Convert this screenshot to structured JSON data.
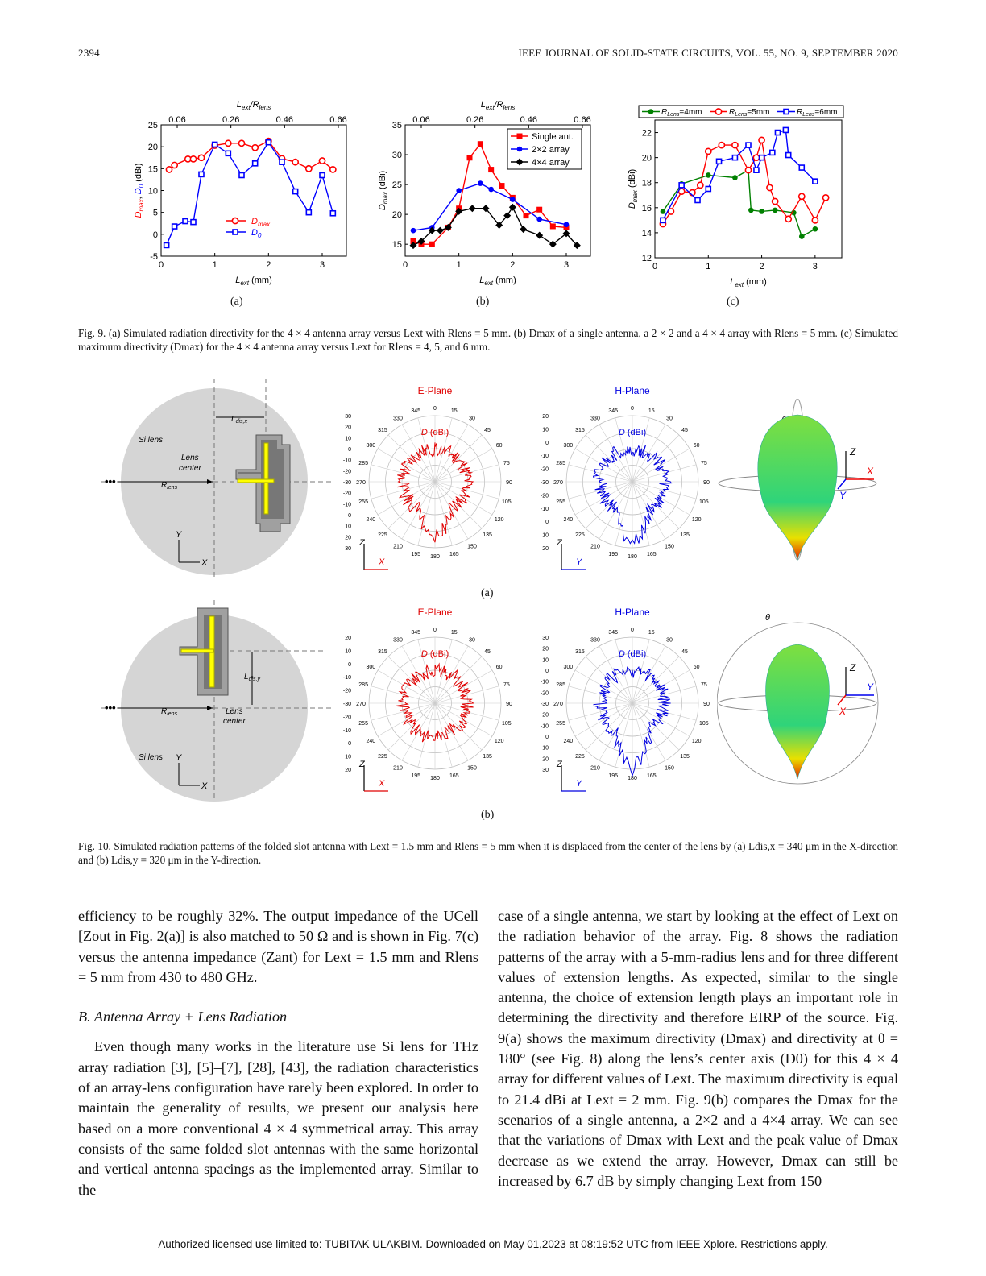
{
  "header": {
    "page_number": "2394",
    "journal": "IEEE JOURNAL OF SOLID-STATE CIRCUITS, VOL. 55, NO. 9, SEPTEMBER 2020"
  },
  "fig9": {
    "caption": "Fig. 9.   (a) Simulated radiation directivity for the 4 × 4 antenna array versus Lext with Rlens = 5 mm. (b) Dmax of a single antenna, a 2 × 2 and a 4 × 4 array with Rlens = 5 mm. (c) Simulated maximum directivity (Dmax) for the 4 × 4 antenna array versus Lext for Rlens = 4, 5, and 6 mm.",
    "label_a": "(a)",
    "label_b": "(b)",
    "label_c": "(c)"
  },
  "chart_data": [
    {
      "type": "line",
      "xlabel": "Lext (mm)",
      "ylabel": "Dmax, D0 (dBi)",
      "top_xlabel": "Lext/Rlens",
      "top_ticks": [
        "0.06",
        "0.26",
        "0.46",
        "0.66"
      ],
      "xlim": [
        0,
        3.45
      ],
      "ylim": [
        -5,
        25
      ],
      "xticks": [
        0,
        1,
        2,
        3
      ],
      "yticks": [
        -5,
        0,
        5,
        10,
        15,
        20,
        25
      ],
      "legend": "bottom-center",
      "series": [
        {
          "name": "Dmax",
          "color": "#ff0000",
          "marker": "circle",
          "x": [
            0.15,
            0.25,
            0.5,
            0.6,
            0.75,
            1.0,
            1.25,
            1.5,
            1.75,
            2.0,
            2.25,
            2.5,
            2.75,
            3.0,
            3.2
          ],
          "y": [
            14.8,
            15.8,
            17.2,
            17.2,
            17.5,
            20.3,
            20.8,
            20.8,
            19.8,
            21.3,
            17.3,
            16.5,
            15.0,
            16.8,
            14.8
          ]
        },
        {
          "name": "D0",
          "color": "#0000ff",
          "marker": "square",
          "x": [
            0.1,
            0.25,
            0.45,
            0.6,
            0.75,
            1.0,
            1.25,
            1.5,
            1.75,
            2.0,
            2.25,
            2.5,
            2.75,
            3.0,
            3.2
          ],
          "y": [
            -2.5,
            1.8,
            3.0,
            2.8,
            13.7,
            20.5,
            18.5,
            13.5,
            16.2,
            21.0,
            16.5,
            9.8,
            5.0,
            13.5,
            4.8
          ]
        }
      ]
    },
    {
      "type": "line",
      "xlabel": "Lext (mm)",
      "ylabel": "Dmax (dBi)",
      "top_xlabel": "Lext/Rlens",
      "top_ticks": [
        "0.06",
        "0.26",
        "0.46",
        "0.66"
      ],
      "xlim": [
        0,
        3.45
      ],
      "ylim": [
        13,
        35
      ],
      "xticks": [
        0,
        1,
        2,
        3
      ],
      "yticks": [
        15,
        20,
        25,
        30,
        35
      ],
      "legend": "top-right",
      "series": [
        {
          "name": "Single ant.",
          "color": "#ff0000",
          "marker": "square",
          "x": [
            0.15,
            0.3,
            0.5,
            0.8,
            1.0,
            1.2,
            1.4,
            1.6,
            1.8,
            2.0,
            2.25,
            2.5,
            2.75,
            3.0
          ],
          "y": [
            15.5,
            15.0,
            15.0,
            17.8,
            21.0,
            29.5,
            31.8,
            27.5,
            24.8,
            22.8,
            19.8,
            20.8,
            18.0,
            17.8
          ]
        },
        {
          "name": "2×2 array",
          "color": "#0000ff",
          "marker": "circle",
          "x": [
            0.15,
            0.5,
            1.0,
            1.4,
            1.6,
            2.0,
            2.5,
            3.0
          ],
          "y": [
            17.3,
            17.8,
            24.0,
            25.2,
            24.2,
            22.5,
            19.2,
            18.3
          ]
        },
        {
          "name": "4×4 array",
          "color": "#000000",
          "marker": "diamond",
          "x": [
            0.15,
            0.3,
            0.5,
            0.65,
            0.8,
            1.0,
            1.25,
            1.5,
            1.75,
            1.9,
            2.0,
            2.2,
            2.5,
            2.75,
            3.0,
            3.2
          ],
          "y": [
            14.8,
            15.5,
            17.3,
            17.3,
            17.8,
            20.5,
            21.0,
            21.0,
            18.2,
            19.8,
            21.2,
            17.5,
            16.5,
            15.0,
            16.8,
            14.8
          ]
        }
      ]
    },
    {
      "type": "line",
      "xlabel": "Lext (mm)",
      "ylabel": "Dmax (dBi)",
      "xlim": [
        0,
        3.5
      ],
      "ylim": [
        12,
        23
      ],
      "xticks": [
        0,
        1,
        2,
        3
      ],
      "yticks": [
        12,
        14,
        16,
        18,
        20,
        22
      ],
      "legend": "top",
      "series": [
        {
          "name": "RLens=4mm",
          "color": "#008000",
          "marker": "filled-circle",
          "x": [
            0.15,
            0.5,
            1.0,
            1.5,
            1.75,
            1.8,
            2.0,
            2.25,
            2.6,
            2.75,
            3.0
          ],
          "y": [
            15.7,
            17.9,
            18.6,
            18.4,
            19.0,
            15.8,
            15.7,
            15.8,
            15.6,
            13.7,
            14.3
          ]
        },
        {
          "name": "RLens=5mm",
          "color": "#ff0000",
          "marker": "circle",
          "x": [
            0.15,
            0.3,
            0.5,
            0.7,
            0.85,
            1.0,
            1.25,
            1.5,
            1.75,
            1.9,
            2.0,
            2.15,
            2.25,
            2.5,
            2.75,
            3.0,
            3.2
          ],
          "y": [
            14.7,
            15.7,
            17.3,
            17.2,
            17.8,
            20.5,
            21.0,
            21.0,
            19.0,
            20.0,
            21.4,
            17.6,
            16.5,
            15.1,
            16.9,
            15.0,
            16.8
          ]
        },
        {
          "name": "RLens=6mm",
          "color": "#0000ff",
          "marker": "square",
          "x": [
            0.15,
            0.5,
            0.8,
            1.0,
            1.2,
            1.5,
            1.75,
            1.9,
            2.0,
            2.2,
            2.3,
            2.45,
            2.5,
            2.75,
            3.0
          ],
          "y": [
            15.0,
            17.8,
            16.6,
            17.5,
            19.7,
            20.0,
            21.0,
            19.0,
            20.0,
            20.4,
            22.0,
            22.2,
            20.2,
            19.2,
            18.1
          ]
        }
      ]
    }
  ],
  "fig10": {
    "caption": "Fig. 10.   Simulated radiation patterns of the folded slot antenna with Lext = 1.5 mm and Rlens = 5 mm when it is displaced from the center of the lens by (a) Ldis,x = 340 μm in the X-direction and (b) Ldis,y = 320 μm in the Y-direction.",
    "label_a": "(a)",
    "label_b": "(b)",
    "si_lens": "Si lens",
    "lens_center": "Lens center",
    "rlens": "Rlens",
    "ldisx": "Ldis,x",
    "ldisy": "Ldis,y",
    "e_plane": "E-Plane",
    "h_plane": "H-Plane",
    "d_unit": "D (dBi)",
    "angles": [
      "0",
      "15",
      "30",
      "45",
      "60",
      "75",
      "90",
      "105",
      "120",
      "135",
      "150",
      "165",
      "180",
      "195",
      "210",
      "225",
      "240",
      "255",
      "270",
      "285",
      "300",
      "315",
      "330",
      "345"
    ],
    "scale_a_e": [
      "30",
      "20",
      "10",
      "0",
      "-10",
      "-20",
      "-30",
      "-20",
      "-10",
      "0",
      "10",
      "20",
      "30"
    ],
    "scale_a_h": [
      "20",
      "10",
      "0",
      "-10",
      "-20",
      "-30",
      "-20",
      "-10",
      "0",
      "10",
      "20"
    ],
    "axes": {
      "x": "X",
      "y": "Y",
      "z": "Z",
      "theta": "θ"
    }
  },
  "body": {
    "left_p1": "efficiency to be roughly 32%. The output impedance of the UCell [Zout in Fig. 2(a)] is also matched to 50 Ω and is shown in Fig. 7(c) versus the antenna impedance (Zant) for Lext = 1.5 mm and Rlens = 5 mm from 430 to 480 GHz.",
    "section": "B. Antenna Array + Lens Radiation",
    "left_p2": "Even though many works in the literature use Si lens for THz array radiation [3], [5]–[7], [28], [43], the radiation characteristics of an array-lens configuration have rarely been explored. In order to maintain the generality of results, we present our analysis here based on a more conventional 4 × 4 symmetrical array. This array consists of the same folded slot antennas with the same horizontal and vertical antenna spacings as the implemented array. Similar to the",
    "right_p1": "case of a single antenna, we start by looking at the effect of Lext on the radiation behavior of the array. Fig. 8 shows the radiation patterns of the array with a 5-mm-radius lens and for three different values of extension lengths. As expected, similar to the single antenna, the choice of extension length plays an important role in determining the directivity and therefore EIRP of the source. Fig. 9(a) shows the maximum directivity (Dmax) and directivity at θ = 180° (see Fig. 8) along the lens’s center axis (D0) for this 4 × 4 array for different values of Lext. The maximum directivity is equal to 21.4 dBi at Lext = 2 mm. Fig. 9(b) compares the Dmax for the scenarios of a single antenna, a 2×2 and a 4×4 array. We can see that the variations of Dmax with Lext and the peak value of Dmax decrease as we extend the array. However, Dmax can still be increased by 6.7 dB by simply changing Lext from 150"
  },
  "footer": "Authorized licensed use limited to: TUBITAK ULAKBIM. Downloaded on May 01,2023 at 08:19:52 UTC from IEEE Xplore.  Restrictions apply."
}
